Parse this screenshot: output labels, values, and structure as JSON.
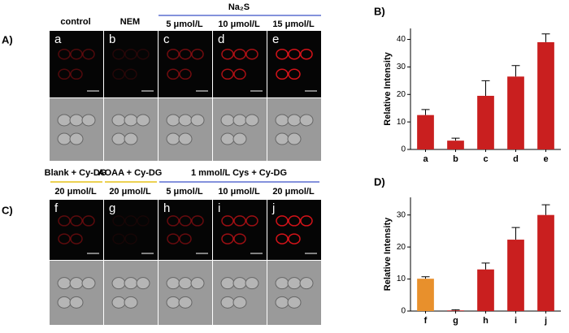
{
  "figure": {
    "panel_labels": [
      "A)",
      "B)",
      "C)",
      "D)"
    ],
    "row_a": {
      "headers": [
        "control",
        "NEM"
      ],
      "group": "Na₂S",
      "group_headers": [
        "5 μmol/L",
        "10 μmol/L",
        "15 μmol/L"
      ]
    },
    "row_c": {
      "groups": [
        "Blank + Cy-DG",
        "AOAA + Cy-DG",
        "1 mmol/L Cys + Cy-DG"
      ],
      "headers": [
        "20 μmol/L",
        "20 μmol/L",
        "5 μmol/L",
        "10 μmol/L",
        "20 μmol/L"
      ]
    }
  },
  "chart_data": [
    {
      "type": "bar",
      "y_label": "Relative Intensity",
      "categories": [
        "a",
        "b",
        "c",
        "d",
        "e"
      ],
      "values": [
        12.5,
        3.2,
        19.5,
        26.5,
        39
      ],
      "errors": [
        2,
        0.9,
        5.5,
        4,
        3
      ],
      "colors": [
        "#c91f1f",
        "#c91f1f",
        "#c91f1f",
        "#c91f1f",
        "#c91f1f"
      ],
      "ylim": [
        0,
        44
      ],
      "yticks": [
        0,
        10,
        20,
        30,
        40
      ]
    },
    {
      "type": "bar",
      "y_label": "Relative Intensity",
      "categories": [
        "f",
        "g",
        "h",
        "i",
        "j"
      ],
      "values": [
        10.1,
        0.2,
        13,
        22.3,
        30
      ],
      "errors": [
        0.6,
        0.2,
        2,
        3.8,
        3.2
      ],
      "colors": [
        "#e8902c",
        "#c91f1f",
        "#c91f1f",
        "#c91f1f",
        "#c91f1f"
      ],
      "ylim": [
        0,
        35.5
      ],
      "yticks": [
        0,
        10,
        20,
        30
      ]
    }
  ]
}
